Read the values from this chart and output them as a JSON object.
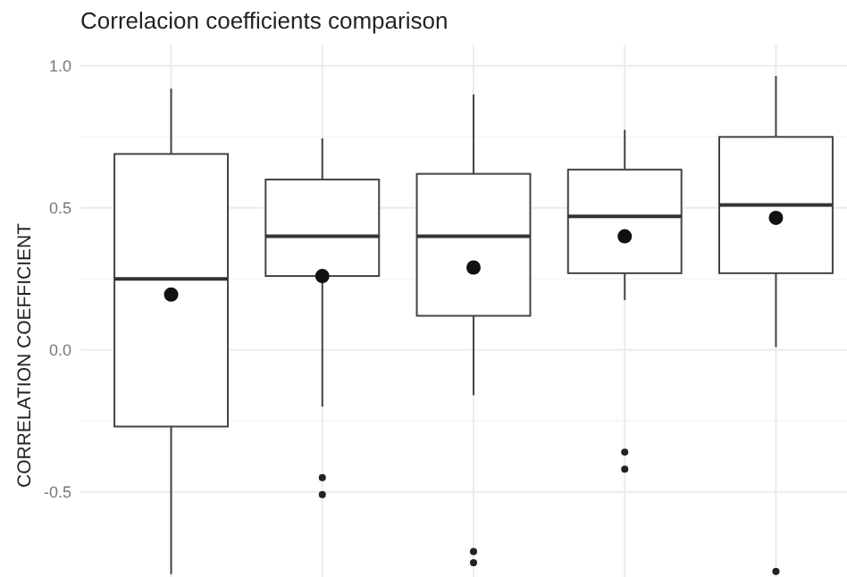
{
  "chart_data": {
    "type": "box",
    "title": "Correlacion coefficients comparison",
    "ylabel": "CORRELATION COEFFICIENT",
    "categories": [
      null,
      null,
      null,
      null,
      null
    ],
    "boxes": [
      {
        "low": -0.79,
        "q1": -0.27,
        "median": 0.25,
        "q3": 0.69,
        "high": 0.92,
        "mean": 0.195
      },
      {
        "low": -0.2,
        "q1": 0.26,
        "median": 0.4,
        "q3": 0.6,
        "high": 0.745,
        "mean": 0.26,
        "outliers": [
          -0.45,
          -0.51
        ]
      },
      {
        "low": -0.16,
        "q1": 0.12,
        "median": 0.4,
        "q3": 0.62,
        "high": 0.9,
        "mean": 0.29,
        "outliers": [
          -0.71,
          -0.75
        ]
      },
      {
        "low": 0.175,
        "q1": 0.27,
        "median": 0.47,
        "q3": 0.635,
        "high": 0.775,
        "mean": 0.4,
        "outliers": [
          -0.36,
          -0.42
        ]
      },
      {
        "low": 0.01,
        "q1": 0.27,
        "median": 0.51,
        "q3": 0.75,
        "high": 0.965,
        "mean": 0.465,
        "outliers": [
          -0.78
        ]
      }
    ],
    "ylim": [
      -0.8,
      1.075
    ],
    "yticks": [
      {
        "value": -0.5,
        "label": "-0.5"
      },
      {
        "value": 0,
        "label": "0.0"
      },
      {
        "value": 0.5,
        "label": "0.5"
      },
      {
        "value": 1,
        "label": "1.0"
      }
    ],
    "grid": true,
    "tick_labels": "y"
  }
}
